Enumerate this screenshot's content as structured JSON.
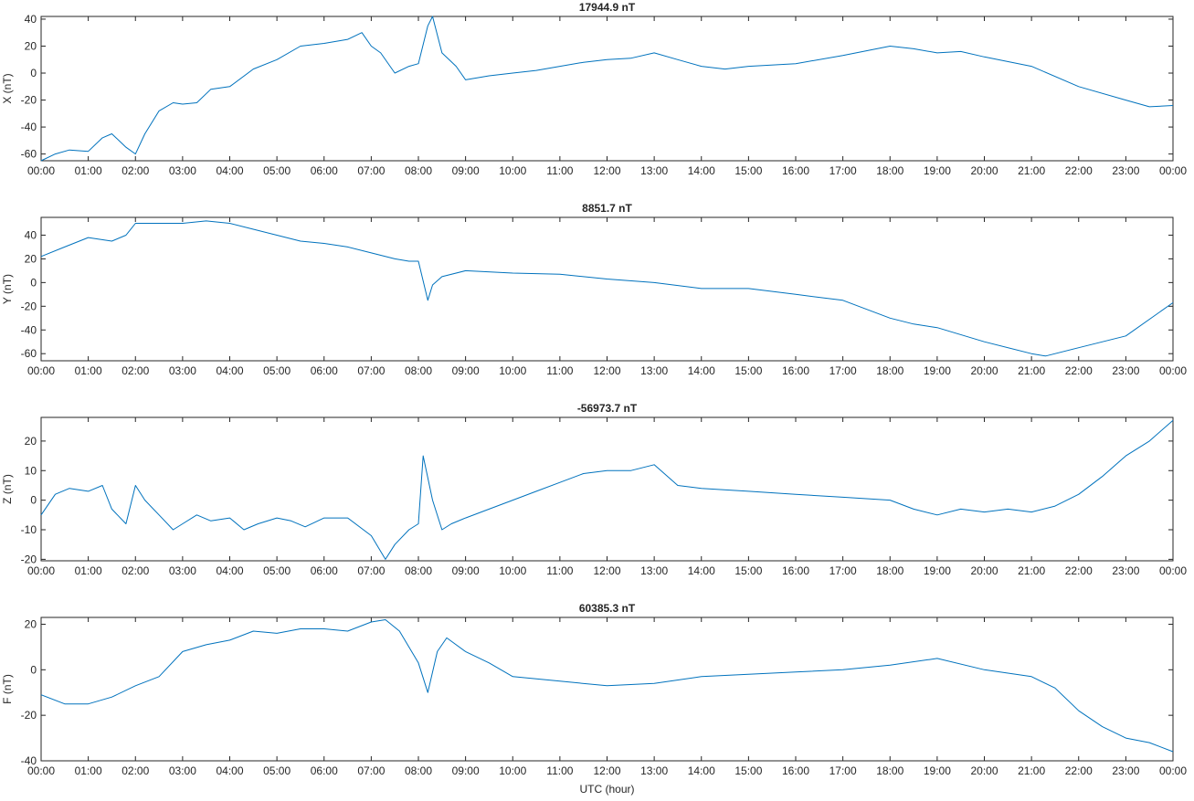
{
  "chart_data": [
    {
      "type": "line",
      "title": "17944.9 nT",
      "ylabel": "X (nT)",
      "xlabel": "",
      "xlim": [
        0,
        24
      ],
      "ylim": [
        -65,
        42
      ],
      "yticks": [
        -60,
        -40,
        -20,
        0,
        20,
        40
      ],
      "xtick_labels": [
        "00:00",
        "01:00",
        "02:00",
        "03:00",
        "04:00",
        "05:00",
        "06:00",
        "07:00",
        "08:00",
        "09:00",
        "10:00",
        "11:00",
        "12:00",
        "13:00",
        "14:00",
        "15:00",
        "16:00",
        "17:00",
        "18:00",
        "19:00",
        "20:00",
        "21:00",
        "22:00",
        "23:00",
        "00:00"
      ],
      "color": "#0072BD",
      "x": [
        0,
        0.3,
        0.6,
        1,
        1.3,
        1.5,
        1.8,
        2,
        2.2,
        2.5,
        2.8,
        3,
        3.3,
        3.6,
        4,
        4.5,
        5,
        5.5,
        6,
        6.5,
        6.8,
        7,
        7.2,
        7.5,
        7.8,
        8,
        8.2,
        8.3,
        8.5,
        8.8,
        9,
        9.5,
        10,
        10.5,
        11,
        11.5,
        12,
        12.5,
        13,
        13.5,
        14,
        14.5,
        15,
        16,
        17,
        18,
        18.5,
        19,
        19.5,
        20,
        21,
        22,
        23,
        23.5,
        24
      ],
      "y": [
        -65,
        -60,
        -57,
        -58,
        -48,
        -45,
        -55,
        -60,
        -45,
        -28,
        -22,
        -23,
        -22,
        -12,
        -10,
        3,
        10,
        20,
        22,
        25,
        30,
        20,
        15,
        0,
        5,
        7,
        35,
        42,
        15,
        5,
        -5,
        -2,
        0,
        2,
        5,
        8,
        10,
        11,
        15,
        10,
        5,
        3,
        5,
        7,
        13,
        20,
        18,
        15,
        16,
        12,
        5,
        -10,
        -20,
        -25,
        -24
      ]
    },
    {
      "type": "line",
      "title": "8851.7 nT",
      "ylabel": "Y (nT)",
      "xlabel": "",
      "xlim": [
        0,
        24
      ],
      "ylim": [
        -66,
        55
      ],
      "yticks": [
        -60,
        -40,
        -20,
        0,
        20,
        40
      ],
      "xtick_labels": [
        "00:00",
        "01:00",
        "02:00",
        "03:00",
        "04:00",
        "05:00",
        "06:00",
        "07:00",
        "08:00",
        "09:00",
        "10:00",
        "11:00",
        "12:00",
        "13:00",
        "14:00",
        "15:00",
        "16:00",
        "17:00",
        "18:00",
        "19:00",
        "20:00",
        "21:00",
        "22:00",
        "23:00",
        "00:00"
      ],
      "color": "#0072BD",
      "x": [
        0,
        0.5,
        1,
        1.5,
        1.8,
        2,
        2.5,
        3,
        3.5,
        4,
        4.5,
        5,
        5.5,
        6,
        6.5,
        7,
        7.5,
        7.8,
        8,
        8.2,
        8.3,
        8.5,
        9,
        10,
        11,
        12,
        13,
        14,
        15,
        16,
        17,
        18,
        18.5,
        19,
        20,
        21,
        21.3,
        22,
        23,
        24
      ],
      "y": [
        22,
        30,
        38,
        35,
        40,
        50,
        50,
        50,
        52,
        50,
        45,
        40,
        35,
        33,
        30,
        25,
        20,
        18,
        18,
        -15,
        -2,
        5,
        10,
        8,
        7,
        3,
        0,
        -5,
        -5,
        -10,
        -15,
        -30,
        -35,
        -38,
        -50,
        -60,
        -62,
        -55,
        -45,
        -17
      ]
    },
    {
      "type": "line",
      "title": "-56973.7 nT",
      "ylabel": "Z (nT)",
      "xlabel": "",
      "xlim": [
        0,
        24
      ],
      "ylim": [
        -20.5,
        28
      ],
      "yticks": [
        -20,
        -10,
        0,
        10,
        20
      ],
      "xtick_labels": [
        "00:00",
        "01:00",
        "02:00",
        "03:00",
        "04:00",
        "05:00",
        "06:00",
        "07:00",
        "08:00",
        "09:00",
        "10:00",
        "11:00",
        "12:00",
        "13:00",
        "14:00",
        "15:00",
        "16:00",
        "17:00",
        "18:00",
        "19:00",
        "20:00",
        "21:00",
        "22:00",
        "23:00",
        "00:00"
      ],
      "color": "#0072BD",
      "x": [
        0,
        0.3,
        0.6,
        1,
        1.3,
        1.5,
        1.8,
        2,
        2.2,
        2.5,
        2.8,
        3,
        3.3,
        3.6,
        4,
        4.3,
        4.6,
        5,
        5.3,
        5.6,
        6,
        6.5,
        7,
        7.3,
        7.5,
        7.8,
        8,
        8.1,
        8.3,
        8.5,
        8.7,
        9,
        9.5,
        10,
        10.5,
        11,
        11.5,
        12,
        12.5,
        13,
        13.5,
        14,
        15,
        16,
        17,
        18,
        18.5,
        19,
        19.5,
        20,
        20.5,
        21,
        21.5,
        22,
        22.5,
        23,
        23.5,
        24
      ],
      "y": [
        -5,
        2,
        4,
        3,
        5,
        -3,
        -8,
        5,
        0,
        -5,
        -10,
        -8,
        -5,
        -7,
        -6,
        -10,
        -8,
        -6,
        -7,
        -9,
        -6,
        -6,
        -12,
        -20,
        -15,
        -10,
        -8,
        15,
        0,
        -10,
        -8,
        -6,
        -3,
        0,
        3,
        6,
        9,
        10,
        10,
        12,
        5,
        4,
        3,
        2,
        1,
        0,
        -3,
        -5,
        -3,
        -4,
        -3,
        -4,
        -2,
        2,
        8,
        15,
        20,
        27
      ]
    },
    {
      "type": "line",
      "title": "60385.3 nT",
      "ylabel": "F (nT)",
      "xlabel": "UTC (hour)",
      "xlim": [
        0,
        24
      ],
      "ylim": [
        -40,
        23
      ],
      "yticks": [
        -40,
        -20,
        0,
        20
      ],
      "xtick_labels": [
        "00:00",
        "01:00",
        "02:00",
        "03:00",
        "04:00",
        "05:00",
        "06:00",
        "07:00",
        "08:00",
        "09:00",
        "10:00",
        "11:00",
        "12:00",
        "13:00",
        "14:00",
        "15:00",
        "16:00",
        "17:00",
        "18:00",
        "19:00",
        "20:00",
        "21:00",
        "22:00",
        "23:00",
        "00:00"
      ],
      "color": "#0072BD",
      "x": [
        0,
        0.5,
        1,
        1.5,
        2,
        2.5,
        3,
        3.5,
        4,
        4.5,
        5,
        5.5,
        6,
        6.5,
        7,
        7.3,
        7.6,
        8,
        8.2,
        8.4,
        8.6,
        9,
        9.5,
        10,
        11,
        12,
        13,
        14,
        15,
        16,
        17,
        18,
        19,
        20,
        21,
        21.5,
        22,
        22.5,
        23,
        23.5,
        24
      ],
      "y": [
        -11,
        -15,
        -15,
        -12,
        -7,
        -3,
        8,
        11,
        13,
        17,
        16,
        18,
        18,
        17,
        21,
        22,
        17,
        3,
        -10,
        8,
        14,
        8,
        3,
        -3,
        -5,
        -7,
        -6,
        -3,
        -2,
        -1,
        0,
        2,
        5,
        0,
        -3,
        -8,
        -18,
        -25,
        -30,
        -32,
        -36
      ]
    }
  ]
}
